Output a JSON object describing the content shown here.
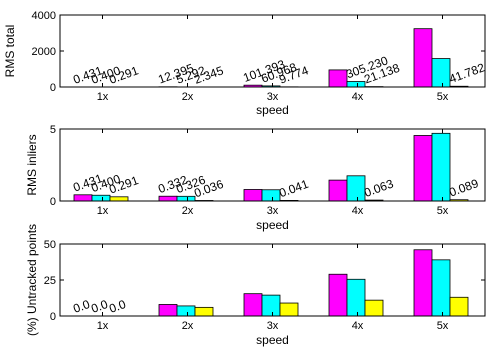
{
  "chart_data": [
    {
      "type": "bar",
      "categories": [
        "1x",
        "2x",
        "3x",
        "4x",
        "5x"
      ],
      "xlabel": "speed",
      "ylabel": "RMS total",
      "ylim": [
        0,
        4000
      ],
      "yticks": [
        "0",
        "2000",
        "4000"
      ],
      "series": [
        {
          "color": "#ff00ff",
          "values": [
            0.431,
            12.395,
            101.393,
            950,
            3240
          ]
        },
        {
          "color": "#00ffff",
          "values": [
            0.4,
            5.292,
            60.968,
            305.23,
            1580
          ]
        },
        {
          "color": "#ffff00",
          "values": [
            0.291,
            2.345,
            9.774,
            21.138,
            41.782
          ]
        }
      ],
      "annotations": [
        [
          "0.431",
          "0.400",
          "0.291"
        ],
        [
          "12.395",
          "5.292",
          "2.345"
        ],
        [
          "101.393",
          "60.968",
          "9.774"
        ],
        [
          "",
          "305.230",
          "21.138"
        ],
        [
          "",
          "",
          "41.782"
        ]
      ]
    },
    {
      "type": "bar",
      "categories": [
        "1x",
        "2x",
        "3x",
        "4x",
        "5x"
      ],
      "xlabel": "speed",
      "ylabel": "RMS inliers",
      "ylim": [
        0,
        5
      ],
      "yticks": [
        "0",
        "5"
      ],
      "series": [
        {
          "color": "#ff00ff",
          "values": [
            0.431,
            0.332,
            0.8,
            1.45,
            4.55
          ]
        },
        {
          "color": "#00ffff",
          "values": [
            0.4,
            0.326,
            0.78,
            1.75,
            4.7
          ]
        },
        {
          "color": "#ffff00",
          "values": [
            0.291,
            0.036,
            0.041,
            0.063,
            0.089
          ]
        }
      ],
      "annotations": [
        [
          "0.431",
          "0.400",
          "0.291"
        ],
        [
          "0.332",
          "0.326",
          "0.036"
        ],
        [
          "",
          "",
          "0.041"
        ],
        [
          "",
          "",
          "0.063"
        ],
        [
          "",
          "",
          "0.089"
        ]
      ]
    },
    {
      "type": "bar",
      "categories": [
        "1x",
        "2x",
        "3x",
        "4x",
        "5x"
      ],
      "xlabel": "speed",
      "ylabel": "(%) Untracked points",
      "ylim": [
        0,
        50
      ],
      "yticks": [
        "0",
        "25",
        "50"
      ],
      "series": [
        {
          "color": "#ff00ff",
          "values": [
            0.0,
            8,
            15.5,
            29,
            46
          ]
        },
        {
          "color": "#00ffff",
          "values": [
            0.0,
            7,
            14.5,
            25.5,
            39
          ]
        },
        {
          "color": "#ffff00",
          "values": [
            0.0,
            6,
            9,
            11,
            13
          ]
        }
      ],
      "annotations": [
        [
          "0.0",
          "0.0",
          "0.0"
        ],
        [
          "",
          "",
          ""
        ],
        [
          "",
          "",
          ""
        ],
        [
          "",
          "",
          ""
        ],
        [
          "",
          "",
          ""
        ]
      ]
    }
  ]
}
